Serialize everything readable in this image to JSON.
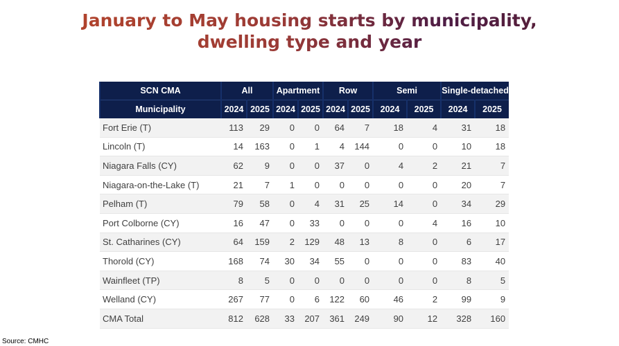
{
  "header": {
    "title": "January to May housing starts by municipality, dwelling type and year"
  },
  "table": {
    "group_headers": [
      {
        "label": "SCN CMA",
        "span": 1
      },
      {
        "label": "All",
        "span": 2
      },
      {
        "label": "Apartment",
        "span": 2
      },
      {
        "label": "Row",
        "span": 2
      },
      {
        "label": "Semi",
        "span": 2
      },
      {
        "label": "Single-detached",
        "span": 2
      }
    ],
    "sub_headers": [
      "Municipality",
      "2024",
      "2025",
      "2024",
      "2025",
      "2024",
      "2025",
      "2024",
      "2025",
      "2024",
      "2025"
    ],
    "rows": [
      [
        "Fort Erie (T)",
        113,
        29,
        0,
        0,
        64,
        7,
        18,
        4,
        31,
        18
      ],
      [
        "Lincoln (T)",
        14,
        163,
        0,
        1,
        4,
        144,
        0,
        0,
        10,
        18
      ],
      [
        "Niagara Falls (CY)",
        62,
        9,
        0,
        0,
        37,
        0,
        4,
        2,
        21,
        7
      ],
      [
        "Niagara-on-the-Lake (T)",
        21,
        7,
        1,
        0,
        0,
        0,
        0,
        0,
        20,
        7
      ],
      [
        "Pelham (T)",
        79,
        58,
        0,
        4,
        31,
        25,
        14,
        0,
        34,
        29
      ],
      [
        "Port Colborne (CY)",
        16,
        47,
        0,
        33,
        0,
        0,
        0,
        4,
        16,
        10
      ],
      [
        "St. Catharines (CY)",
        64,
        159,
        2,
        129,
        48,
        13,
        8,
        0,
        6,
        17
      ],
      [
        "Thorold (CY)",
        168,
        74,
        30,
        34,
        55,
        0,
        0,
        0,
        83,
        40
      ],
      [
        "Wainfleet (TP)",
        8,
        5,
        0,
        0,
        0,
        0,
        0,
        0,
        8,
        5
      ],
      [
        "Welland (CY)",
        267,
        77,
        0,
        6,
        122,
        60,
        46,
        2,
        99,
        9
      ],
      [
        "CMA Total",
        812,
        628,
        33,
        207,
        361,
        249,
        90,
        12,
        328,
        160
      ]
    ]
  },
  "footer": {
    "source": "Source: CMHC"
  }
}
